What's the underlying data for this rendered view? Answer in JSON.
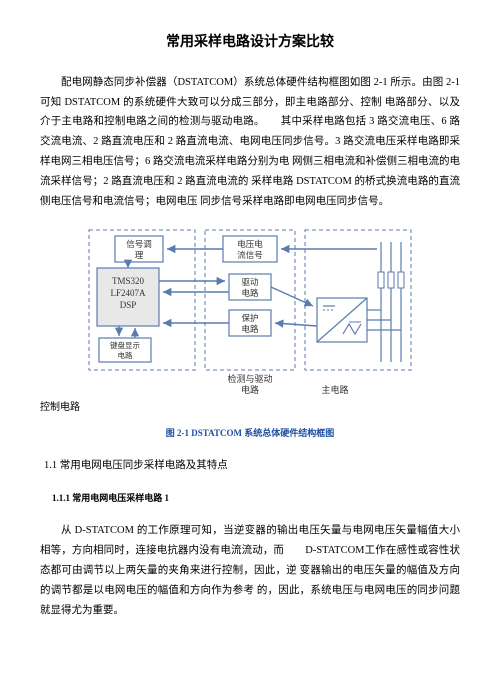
{
  "title": "常用采样电路设计方案比较",
  "para1": "配电网静态同步补偿器（DSTATCOM）系统总体硬件结构框图如图 2-1 所示。由图 2-1 可知 DSTATCOM 的系统硬件大致可以分成三部分，即主电路部分、控制 电路部分、以及介于主电路和控制电路之间的检测与驱动电路。　　其中采样电路包括 3 路交流电压、6 路交流电流、2 路直流电压和 2 路直流电流、电网电压同步信号。3 路交流电压采样电路即采样电网三相电压信号；6 路交流电流采样电路分别为电 网侧三相电流和补偿侧三相电流的电流采样信号；2 路直流电压和 2 路直流电流的 采样电路 DSTATCOM 的桥式换流电路的直流侧电压信号和电流信号；电网电压 同步信号采样电路即电网电压同步信号。",
  "diagram": {
    "colors": {
      "boxStroke": "#5b7bb0",
      "boxFill": "#ffffff",
      "lfBoxFill": "#e8e8e8",
      "dashed": "#5b7bb0",
      "text": "#333333"
    },
    "boxes": {
      "signal": "信号调\n理",
      "vi": "电压电\n流信号",
      "drive": "驱动\n电路",
      "protect": "保护\n电路",
      "dsp": "TMS320\nLF2407A\nDSP",
      "kbDisplay": "键盘显示\n电路"
    },
    "labels": {
      "controlCircuit": "控制电路",
      "detectDrive": "检测与驱动\n电路",
      "mainCircuit": "主电路"
    }
  },
  "caption": "图 2-1 DSTATCOM 系统总体硬件结构框图",
  "section1_1": "1.1 常用电网电压同步采样电路及其特点",
  "section1_1_1": "1.1.1 常用电网电压采样电路 1",
  "para2_a": "从 D-STATCOM 的工作原理可知，当逆变器的输出电压矢量与电网电压矢量幅值大小相等，方向相同时，连接电抗器内没有电流流动，而　　",
  "para2_b": "D-STATCOM",
  "para2_c": "工作在感性或容性状态都可由调节以上两矢量的夹角来进行控制，因此，逆 变器输出的电压矢量的幅值及方向的调节都是以电网电压的幅值和方向作为参考 的，因此，系统电压与电网电压的同步问题就显得尤为重要。"
}
